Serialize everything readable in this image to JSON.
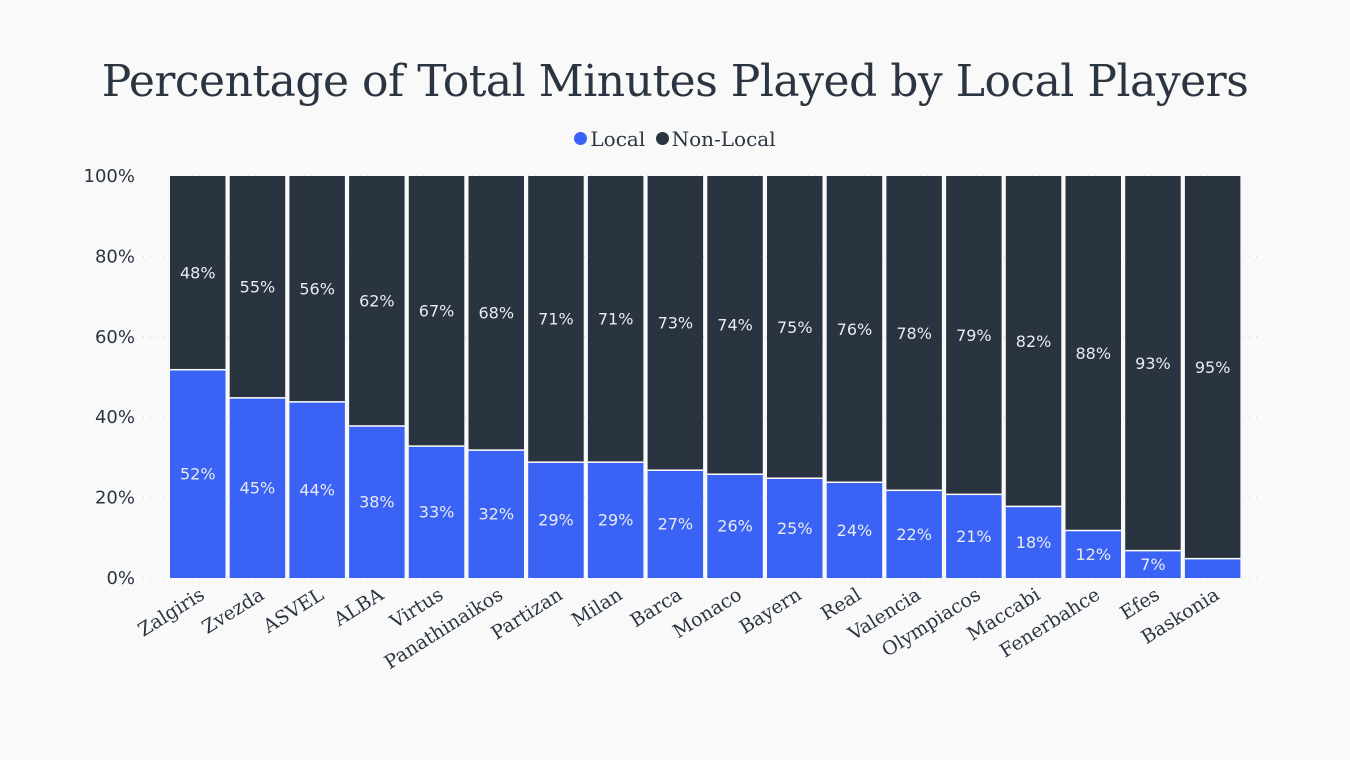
{
  "chart_data": {
    "type": "bar",
    "stacked": true,
    "title": "Percentage of Total Minutes Played by Local Players",
    "categories": [
      "Zalgiris",
      "Zvezda",
      "ASVEL",
      "ALBA",
      "Virtus",
      "Panathinaikos",
      "Partizan",
      "Milan",
      "Barca",
      "Monaco",
      "Bayern",
      "Real",
      "Valencia",
      "Olympiacos",
      "Maccabi",
      "Fenerbahce",
      "Efes",
      "Baskonia"
    ],
    "series": [
      {
        "name": "Local",
        "color": "#3a63f5",
        "values": [
          52,
          45,
          44,
          38,
          33,
          32,
          29,
          29,
          27,
          26,
          25,
          24,
          22,
          21,
          18,
          12,
          7,
          5
        ],
        "labels": [
          "52%",
          "45%",
          "44%",
          "38%",
          "33%",
          "32%",
          "29%",
          "29%",
          "27%",
          "26%",
          "25%",
          "24%",
          "22%",
          "21%",
          "18%",
          "12%",
          "7%",
          ""
        ]
      },
      {
        "name": "Non-Local",
        "color": "#2a3441",
        "values": [
          48,
          55,
          56,
          62,
          67,
          68,
          71,
          71,
          73,
          74,
          75,
          76,
          78,
          79,
          82,
          88,
          93,
          95
        ],
        "labels": [
          "48%",
          "55%",
          "56%",
          "62%",
          "67%",
          "68%",
          "71%",
          "71%",
          "73%",
          "74%",
          "75%",
          "76%",
          "78%",
          "79%",
          "82%",
          "88%",
          "93%",
          "95%"
        ]
      }
    ],
    "yticks": [
      "0%",
      "20%",
      "40%",
      "60%",
      "80%",
      "100%"
    ],
    "ylim": [
      0,
      100
    ],
    "legend_position": "top-center",
    "grid": true
  }
}
